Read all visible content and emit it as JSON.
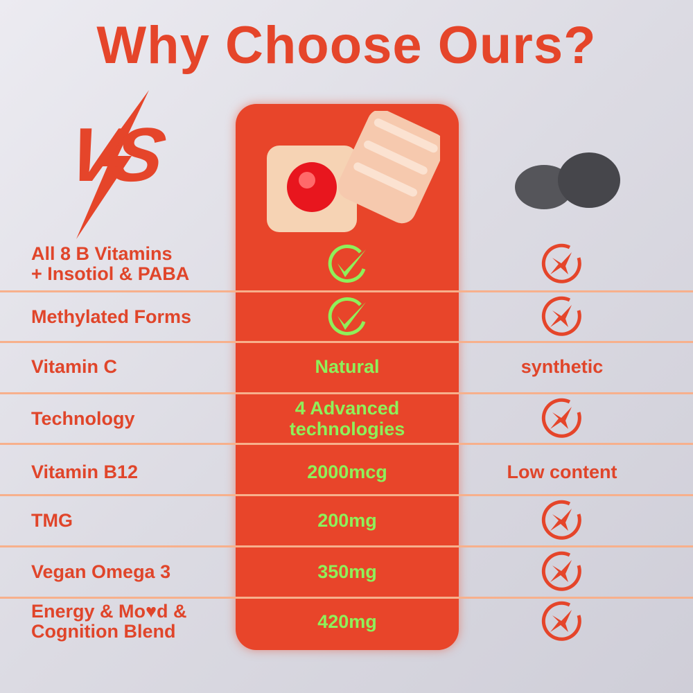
{
  "title": "Why Choose Ours?",
  "vs_logo": "VS",
  "colors": {
    "accent": "#e8452a",
    "check": "#8ef05a",
    "divider": "#f7b08c"
  },
  "rows": [
    {
      "label": "All 8 B Vitamins\n+ Insotiol & PABA",
      "ours": {
        "icon": "check-circle-icon"
      },
      "theirs": {
        "icon": "x-circle-icon"
      }
    },
    {
      "label": "Methylated Forms",
      "ours": {
        "icon": "check-circle-icon"
      },
      "theirs": {
        "icon": "x-circle-icon"
      }
    },
    {
      "label": "Vitamin C",
      "ours": {
        "text": "Natural"
      },
      "theirs": {
        "text": "synthetic"
      }
    },
    {
      "label": "Technology",
      "ours": {
        "text": "4 Advanced\ntechnologies"
      },
      "theirs": {
        "icon": "x-circle-icon"
      }
    },
    {
      "label": "Vitamin B12",
      "ours": {
        "text": "2000mcg"
      },
      "theirs": {
        "text": "Low content"
      }
    },
    {
      "label": "TMG",
      "ours": {
        "text": "200mg"
      },
      "theirs": {
        "icon": "x-circle-icon"
      }
    },
    {
      "label": "Vegan Omega 3",
      "ours": {
        "text": "350mg"
      },
      "theirs": {
        "icon": "x-circle-icon"
      }
    },
    {
      "label": "Energy & Mo♥d &\nCognition Blend",
      "ours": {
        "text": "420mg"
      },
      "theirs": {
        "icon": "x-circle-icon"
      }
    }
  ]
}
